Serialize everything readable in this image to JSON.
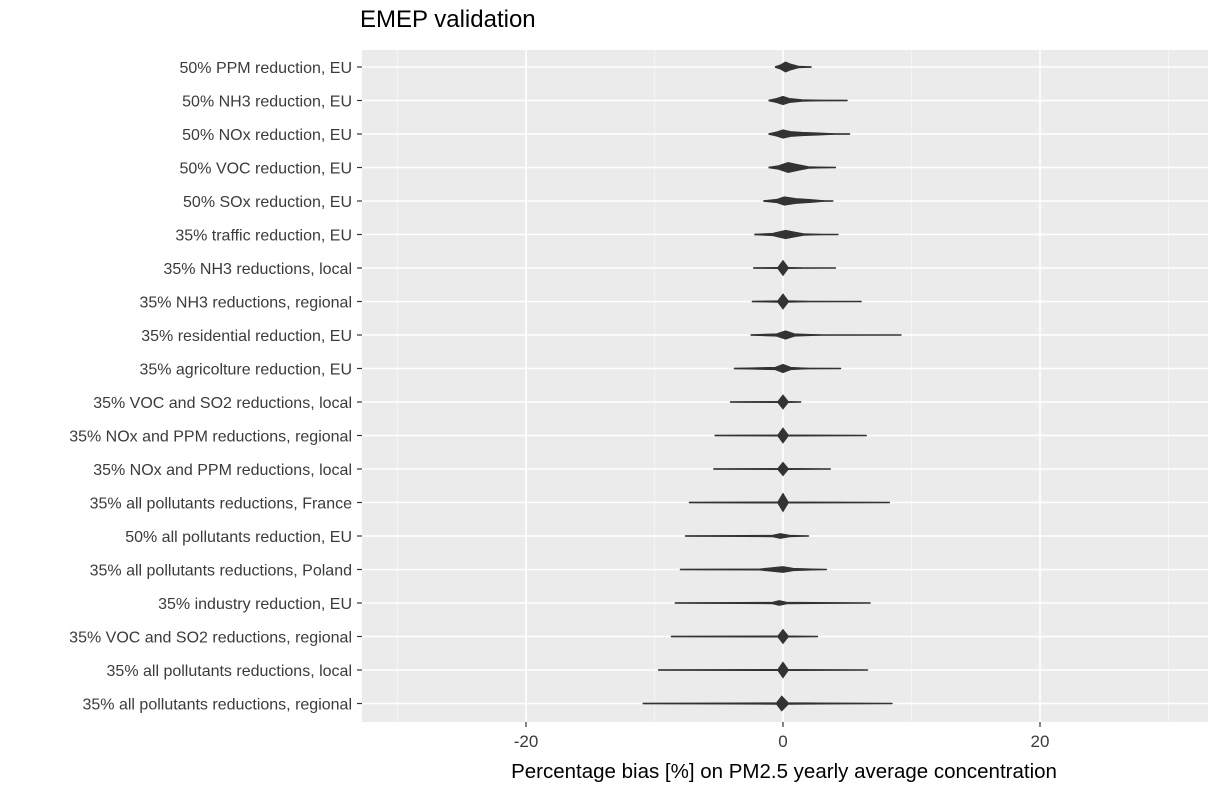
{
  "chart_data": {
    "type": "violin",
    "title": "EMEP validation",
    "xlabel": "Percentage bias [%] on PM2.5 yearly average concentration",
    "ylabel": "",
    "xlim": [
      -33,
      33
    ],
    "x_ticks": [
      -20,
      0,
      20
    ],
    "x_tick_labels": [
      "-20",
      "0",
      "20"
    ],
    "grid": true,
    "colors": {
      "panel": "#ebebeb",
      "grid_major": "#ffffff",
      "grid_minor": "#f4f4f4",
      "mark": "#333333"
    },
    "categories": [
      "50% PPM reduction, EU",
      "50% NH3 reduction, EU",
      "50% NOx reduction, EU",
      "50% VOC reduction, EU",
      "50% SOx reduction, EU",
      "35% traffic reduction, EU",
      "35% NH3 reductions, local",
      "35% NH3 reductions, regional",
      "35% residential reduction, EU",
      "35% agricolture reduction, EU",
      "35% VOC and SO2 reductions, local",
      "35% NOx and PPM reductions, regional",
      "35% NOx and PPM reductions, local",
      "35% all pollutants reductions, France ",
      "50% all pollutants reduction, EU",
      "35% all pollutants reductions, Poland",
      "35% industry reduction, EU",
      "35% VOC and SO2 reductions, regional",
      "35% all pollutants reductions, local",
      "35% all pollutants reductions, regional"
    ],
    "series": [
      {
        "min": -0.6,
        "max": 2.2,
        "center": 0.2,
        "density": [
          [
            -0.6,
            0.1
          ],
          [
            -0.2,
            0.5
          ],
          [
            0.2,
            1.2
          ],
          [
            0.6,
            0.7
          ],
          [
            1.2,
            0.2
          ],
          [
            2.2,
            0.05
          ]
        ]
      },
      {
        "min": -1.1,
        "max": 5.0,
        "center": 0.0,
        "density": [
          [
            -1.1,
            0.1
          ],
          [
            -0.5,
            0.5
          ],
          [
            0.0,
            1.0
          ],
          [
            0.5,
            0.5
          ],
          [
            1.5,
            0.2
          ],
          [
            3.0,
            0.08
          ],
          [
            5.0,
            0.04
          ]
        ]
      },
      {
        "min": -1.1,
        "max": 5.2,
        "center": 0.0,
        "density": [
          [
            -1.1,
            0.1
          ],
          [
            -0.5,
            0.5
          ],
          [
            0.0,
            1.0
          ],
          [
            0.6,
            0.6
          ],
          [
            1.5,
            0.4
          ],
          [
            2.8,
            0.25
          ],
          [
            4.0,
            0.08
          ],
          [
            5.2,
            0.04
          ]
        ]
      },
      {
        "min": -1.1,
        "max": 4.1,
        "center": 0.4,
        "density": [
          [
            -1.1,
            0.1
          ],
          [
            -0.4,
            0.4
          ],
          [
            0.4,
            1.2
          ],
          [
            1.0,
            0.8
          ],
          [
            2.0,
            0.2
          ],
          [
            4.1,
            0.04
          ]
        ]
      },
      {
        "min": -1.5,
        "max": 3.9,
        "center": 0.1,
        "density": [
          [
            -1.5,
            0.08
          ],
          [
            -0.5,
            0.4
          ],
          [
            0.1,
            1.0
          ],
          [
            1.0,
            0.6
          ],
          [
            2.2,
            0.35
          ],
          [
            3.2,
            0.08
          ],
          [
            3.9,
            0.03
          ]
        ]
      },
      {
        "min": -2.2,
        "max": 4.3,
        "center": 0.2,
        "density": [
          [
            -2.2,
            0.08
          ],
          [
            -0.8,
            0.3
          ],
          [
            0.2,
            1.0
          ],
          [
            0.9,
            0.6
          ],
          [
            1.6,
            0.2
          ],
          [
            3.0,
            0.06
          ],
          [
            4.3,
            0.03
          ]
        ]
      },
      {
        "min": -2.3,
        "max": 4.1,
        "center": 0.0,
        "density": [
          [
            -2.3,
            0.05
          ],
          [
            -0.4,
            0.15
          ],
          [
            0.0,
            1.8
          ],
          [
            0.4,
            0.15
          ],
          [
            1.5,
            0.05
          ],
          [
            4.1,
            0.03
          ]
        ]
      },
      {
        "min": -2.4,
        "max": 6.1,
        "center": 0.0,
        "density": [
          [
            -2.4,
            0.05
          ],
          [
            -0.4,
            0.2
          ],
          [
            0.0,
            1.8
          ],
          [
            0.4,
            0.2
          ],
          [
            2.0,
            0.05
          ],
          [
            6.1,
            0.03
          ]
        ]
      },
      {
        "min": -2.5,
        "max": 9.2,
        "center": 0.2,
        "density": [
          [
            -2.5,
            0.05
          ],
          [
            -0.5,
            0.3
          ],
          [
            0.2,
            1.0
          ],
          [
            0.9,
            0.3
          ],
          [
            3.0,
            0.06
          ],
          [
            9.2,
            0.02
          ]
        ]
      },
      {
        "min": -3.8,
        "max": 4.5,
        "center": 0.0,
        "density": [
          [
            -3.8,
            0.05
          ],
          [
            -0.6,
            0.3
          ],
          [
            0.0,
            1.0
          ],
          [
            0.6,
            0.3
          ],
          [
            2.0,
            0.08
          ],
          [
            4.5,
            0.02
          ]
        ]
      },
      {
        "min": -4.1,
        "max": 1.4,
        "center": 0.0,
        "density": [
          [
            -4.1,
            0.04
          ],
          [
            -0.4,
            0.15
          ],
          [
            0.0,
            1.7
          ],
          [
            0.4,
            0.15
          ],
          [
            1.4,
            0.03
          ]
        ]
      },
      {
        "min": -5.3,
        "max": 6.5,
        "center": 0.0,
        "density": [
          [
            -5.3,
            0.04
          ],
          [
            -0.4,
            0.15
          ],
          [
            0.0,
            1.8
          ],
          [
            0.4,
            0.15
          ],
          [
            6.5,
            0.02
          ]
        ]
      },
      {
        "min": -5.4,
        "max": 3.7,
        "center": 0.0,
        "density": [
          [
            -5.4,
            0.04
          ],
          [
            -0.4,
            0.15
          ],
          [
            0.0,
            1.6
          ],
          [
            0.4,
            0.15
          ],
          [
            3.7,
            0.02
          ]
        ]
      },
      {
        "min": -7.3,
        "max": 8.3,
        "center": 0.0,
        "density": [
          [
            -7.3,
            0.04
          ],
          [
            -0.4,
            0.15
          ],
          [
            0.0,
            2.2
          ],
          [
            0.4,
            0.15
          ],
          [
            8.3,
            0.02
          ]
        ]
      },
      {
        "min": -7.6,
        "max": 2.0,
        "center": -0.2,
        "density": [
          [
            -7.6,
            0.04
          ],
          [
            -0.8,
            0.2
          ],
          [
            -0.2,
            0.6
          ],
          [
            0.5,
            0.2
          ],
          [
            2.0,
            0.04
          ]
        ]
      },
      {
        "min": -8.0,
        "max": 3.4,
        "center": 0.0,
        "density": [
          [
            -8.0,
            0.04
          ],
          [
            -1.8,
            0.15
          ],
          [
            0.0,
            0.7
          ],
          [
            0.8,
            0.3
          ],
          [
            3.4,
            0.03
          ]
        ]
      },
      {
        "min": -8.4,
        "max": 6.8,
        "center": -0.3,
        "density": [
          [
            -8.4,
            0.04
          ],
          [
            -0.8,
            0.2
          ],
          [
            -0.3,
            0.6
          ],
          [
            0.3,
            0.2
          ],
          [
            6.8,
            0.02
          ]
        ]
      },
      {
        "min": -8.7,
        "max": 2.7,
        "center": 0.0,
        "density": [
          [
            -8.7,
            0.04
          ],
          [
            -0.4,
            0.15
          ],
          [
            0.0,
            1.7
          ],
          [
            0.4,
            0.15
          ],
          [
            2.7,
            0.02
          ]
        ]
      },
      {
        "min": -9.7,
        "max": 6.6,
        "center": 0.0,
        "density": [
          [
            -9.7,
            0.04
          ],
          [
            -0.4,
            0.15
          ],
          [
            0.0,
            1.9
          ],
          [
            0.4,
            0.15
          ],
          [
            6.6,
            0.02
          ]
        ]
      },
      {
        "min": -10.9,
        "max": 8.5,
        "center": -0.1,
        "density": [
          [
            -10.9,
            0.04
          ],
          [
            -0.5,
            0.2
          ],
          [
            -0.1,
            1.8
          ],
          [
            0.4,
            0.2
          ],
          [
            8.5,
            0.02
          ]
        ]
      }
    ]
  }
}
